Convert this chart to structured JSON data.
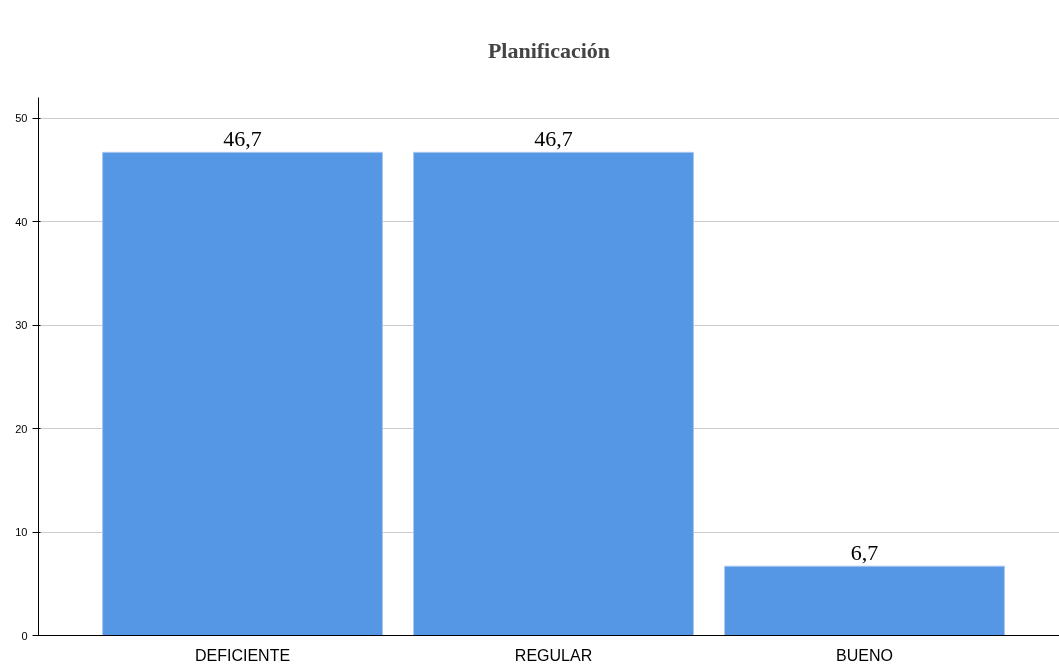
{
  "chart_data": {
    "type": "bar",
    "title": "Planificación",
    "categories": [
      "DEFICIENTE",
      "REGULAR",
      "BUENO"
    ],
    "values": [
      46.7,
      46.7,
      6.7
    ],
    "value_labels": [
      "46,7",
      "46,7",
      "6,7"
    ],
    "color": "#5596e5",
    "ylim": [
      0,
      52
    ],
    "yticks": [
      0,
      10,
      20,
      30,
      40,
      50
    ],
    "grid": "y"
  }
}
